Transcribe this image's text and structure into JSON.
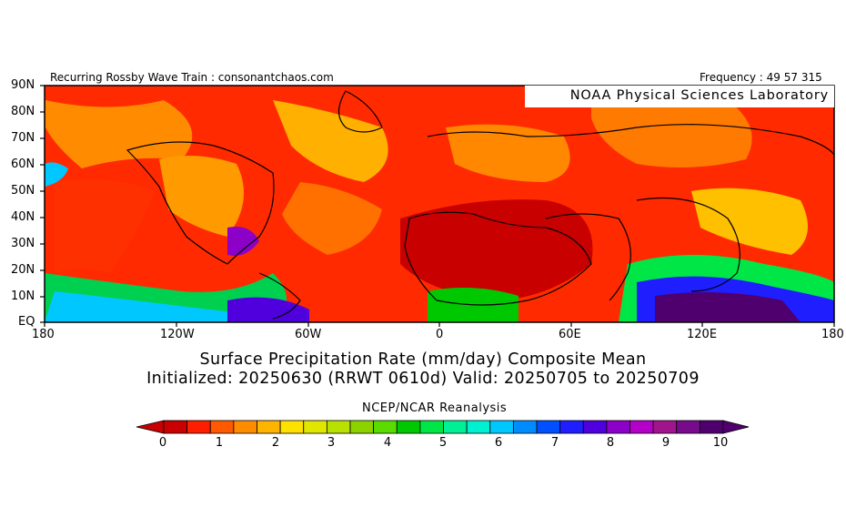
{
  "header": {
    "left": "Recurring Rossby Wave Train : consonantchaos.com",
    "right": "Frequency : 49 57 315",
    "org": "NOAA Physical Sciences Laboratory"
  },
  "map": {
    "lat_labels": [
      "90N",
      "80N",
      "70N",
      "60N",
      "50N",
      "40N",
      "30N",
      "20N",
      "10N",
      "EQ"
    ],
    "lon_labels": [
      "180",
      "120W",
      "60W",
      "0",
      "60E",
      "120E",
      "180"
    ],
    "extent": {
      "lon": [
        -180,
        180
      ],
      "lat": [
        0,
        90
      ]
    },
    "fill_color": "#ff2a00"
  },
  "title": {
    "line1": "Surface Precipitation Rate (mm/day) Composite Mean",
    "line2": "Initialized: 20250630 (RRWT 0610d) Valid: 20250705 to 20250709"
  },
  "source": "NCEP/NCAR Reanalysis",
  "colorbar": {
    "labels": [
      "0",
      "1",
      "2",
      "3",
      "4",
      "5",
      "6",
      "7",
      "8",
      "9",
      "10"
    ],
    "colors": [
      "#c80000",
      "#ff1e00",
      "#ff5a00",
      "#ff8c00",
      "#ffb400",
      "#ffe100",
      "#e1e600",
      "#b9e100",
      "#8cd200",
      "#5adc00",
      "#00c800",
      "#00e646",
      "#00f096",
      "#00f0d2",
      "#00c8ff",
      "#008cff",
      "#0050ff",
      "#1e1eff",
      "#5000dc",
      "#8c00c8",
      "#b400c8",
      "#a0148c",
      "#780a8c",
      "#50006e"
    ]
  }
}
